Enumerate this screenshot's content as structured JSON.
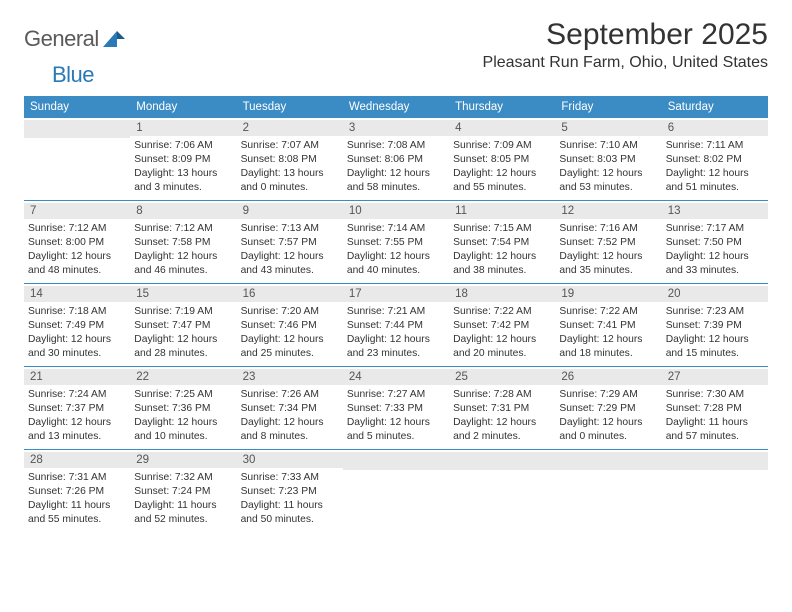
{
  "logo": {
    "text1": "General",
    "text2": "Blue"
  },
  "title": "September 2025",
  "location": "Pleasant Run Farm, Ohio, United States",
  "colors": {
    "header_bg": "#3b8bc4",
    "header_text": "#ffffff",
    "date_bar_bg": "#e9e9e9",
    "week_border": "#3b8bc4",
    "text": "#333333",
    "logo_gray": "#5a5a5a",
    "logo_blue": "#2a7ab8"
  },
  "day_names": [
    "Sunday",
    "Monday",
    "Tuesday",
    "Wednesday",
    "Thursday",
    "Friday",
    "Saturday"
  ],
  "weeks": [
    [
      {
        "date": "",
        "sunrise": "",
        "sunset": "",
        "daylight": ""
      },
      {
        "date": "1",
        "sunrise": "Sunrise: 7:06 AM",
        "sunset": "Sunset: 8:09 PM",
        "daylight": "Daylight: 13 hours and 3 minutes."
      },
      {
        "date": "2",
        "sunrise": "Sunrise: 7:07 AM",
        "sunset": "Sunset: 8:08 PM",
        "daylight": "Daylight: 13 hours and 0 minutes."
      },
      {
        "date": "3",
        "sunrise": "Sunrise: 7:08 AM",
        "sunset": "Sunset: 8:06 PM",
        "daylight": "Daylight: 12 hours and 58 minutes."
      },
      {
        "date": "4",
        "sunrise": "Sunrise: 7:09 AM",
        "sunset": "Sunset: 8:05 PM",
        "daylight": "Daylight: 12 hours and 55 minutes."
      },
      {
        "date": "5",
        "sunrise": "Sunrise: 7:10 AM",
        "sunset": "Sunset: 8:03 PM",
        "daylight": "Daylight: 12 hours and 53 minutes."
      },
      {
        "date": "6",
        "sunrise": "Sunrise: 7:11 AM",
        "sunset": "Sunset: 8:02 PM",
        "daylight": "Daylight: 12 hours and 51 minutes."
      }
    ],
    [
      {
        "date": "7",
        "sunrise": "Sunrise: 7:12 AM",
        "sunset": "Sunset: 8:00 PM",
        "daylight": "Daylight: 12 hours and 48 minutes."
      },
      {
        "date": "8",
        "sunrise": "Sunrise: 7:12 AM",
        "sunset": "Sunset: 7:58 PM",
        "daylight": "Daylight: 12 hours and 46 minutes."
      },
      {
        "date": "9",
        "sunrise": "Sunrise: 7:13 AM",
        "sunset": "Sunset: 7:57 PM",
        "daylight": "Daylight: 12 hours and 43 minutes."
      },
      {
        "date": "10",
        "sunrise": "Sunrise: 7:14 AM",
        "sunset": "Sunset: 7:55 PM",
        "daylight": "Daylight: 12 hours and 40 minutes."
      },
      {
        "date": "11",
        "sunrise": "Sunrise: 7:15 AM",
        "sunset": "Sunset: 7:54 PM",
        "daylight": "Daylight: 12 hours and 38 minutes."
      },
      {
        "date": "12",
        "sunrise": "Sunrise: 7:16 AM",
        "sunset": "Sunset: 7:52 PM",
        "daylight": "Daylight: 12 hours and 35 minutes."
      },
      {
        "date": "13",
        "sunrise": "Sunrise: 7:17 AM",
        "sunset": "Sunset: 7:50 PM",
        "daylight": "Daylight: 12 hours and 33 minutes."
      }
    ],
    [
      {
        "date": "14",
        "sunrise": "Sunrise: 7:18 AM",
        "sunset": "Sunset: 7:49 PM",
        "daylight": "Daylight: 12 hours and 30 minutes."
      },
      {
        "date": "15",
        "sunrise": "Sunrise: 7:19 AM",
        "sunset": "Sunset: 7:47 PM",
        "daylight": "Daylight: 12 hours and 28 minutes."
      },
      {
        "date": "16",
        "sunrise": "Sunrise: 7:20 AM",
        "sunset": "Sunset: 7:46 PM",
        "daylight": "Daylight: 12 hours and 25 minutes."
      },
      {
        "date": "17",
        "sunrise": "Sunrise: 7:21 AM",
        "sunset": "Sunset: 7:44 PM",
        "daylight": "Daylight: 12 hours and 23 minutes."
      },
      {
        "date": "18",
        "sunrise": "Sunrise: 7:22 AM",
        "sunset": "Sunset: 7:42 PM",
        "daylight": "Daylight: 12 hours and 20 minutes."
      },
      {
        "date": "19",
        "sunrise": "Sunrise: 7:22 AM",
        "sunset": "Sunset: 7:41 PM",
        "daylight": "Daylight: 12 hours and 18 minutes."
      },
      {
        "date": "20",
        "sunrise": "Sunrise: 7:23 AM",
        "sunset": "Sunset: 7:39 PM",
        "daylight": "Daylight: 12 hours and 15 minutes."
      }
    ],
    [
      {
        "date": "21",
        "sunrise": "Sunrise: 7:24 AM",
        "sunset": "Sunset: 7:37 PM",
        "daylight": "Daylight: 12 hours and 13 minutes."
      },
      {
        "date": "22",
        "sunrise": "Sunrise: 7:25 AM",
        "sunset": "Sunset: 7:36 PM",
        "daylight": "Daylight: 12 hours and 10 minutes."
      },
      {
        "date": "23",
        "sunrise": "Sunrise: 7:26 AM",
        "sunset": "Sunset: 7:34 PM",
        "daylight": "Daylight: 12 hours and 8 minutes."
      },
      {
        "date": "24",
        "sunrise": "Sunrise: 7:27 AM",
        "sunset": "Sunset: 7:33 PM",
        "daylight": "Daylight: 12 hours and 5 minutes."
      },
      {
        "date": "25",
        "sunrise": "Sunrise: 7:28 AM",
        "sunset": "Sunset: 7:31 PM",
        "daylight": "Daylight: 12 hours and 2 minutes."
      },
      {
        "date": "26",
        "sunrise": "Sunrise: 7:29 AM",
        "sunset": "Sunset: 7:29 PM",
        "daylight": "Daylight: 12 hours and 0 minutes."
      },
      {
        "date": "27",
        "sunrise": "Sunrise: 7:30 AM",
        "sunset": "Sunset: 7:28 PM",
        "daylight": "Daylight: 11 hours and 57 minutes."
      }
    ],
    [
      {
        "date": "28",
        "sunrise": "Sunrise: 7:31 AM",
        "sunset": "Sunset: 7:26 PM",
        "daylight": "Daylight: 11 hours and 55 minutes."
      },
      {
        "date": "29",
        "sunrise": "Sunrise: 7:32 AM",
        "sunset": "Sunset: 7:24 PM",
        "daylight": "Daylight: 11 hours and 52 minutes."
      },
      {
        "date": "30",
        "sunrise": "Sunrise: 7:33 AM",
        "sunset": "Sunset: 7:23 PM",
        "daylight": "Daylight: 11 hours and 50 minutes."
      },
      {
        "date": "",
        "sunrise": "",
        "sunset": "",
        "daylight": ""
      },
      {
        "date": "",
        "sunrise": "",
        "sunset": "",
        "daylight": ""
      },
      {
        "date": "",
        "sunrise": "",
        "sunset": "",
        "daylight": ""
      },
      {
        "date": "",
        "sunrise": "",
        "sunset": "",
        "daylight": ""
      }
    ]
  ]
}
